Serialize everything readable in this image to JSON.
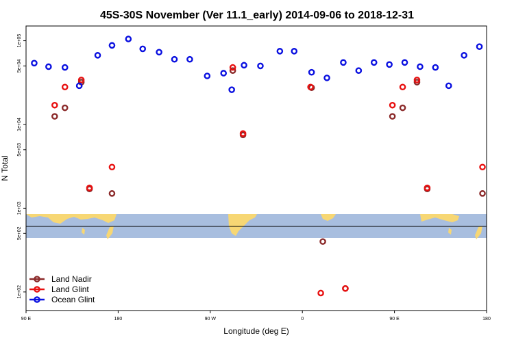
{
  "chart_data": {
    "type": "scatter",
    "title": "45S-30S November (Ver 11.1_early)   2014-09-06 to 2018-12-31",
    "xlabel": "Longitude (deg E)",
    "ylabel": "N Total",
    "x_axis": {
      "range_deg": [
        90,
        450
      ],
      "ticks": [
        {
          "value": 90,
          "label": "90 E"
        },
        {
          "value": 180,
          "label": "180"
        },
        {
          "value": 270,
          "label": "90 W"
        },
        {
          "value": 360,
          "label": "0"
        },
        {
          "value": 450,
          "label": "90 E"
        },
        {
          "value": 540,
          "label": "180"
        }
      ],
      "plot_range_deg": [
        90,
        540
      ]
    },
    "y_axis": {
      "scale": "log",
      "range": [
        60,
        150000
      ],
      "ticks": [
        {
          "value": 100,
          "label": "1e+02"
        },
        {
          "value": 500,
          "label": "5e+02"
        },
        {
          "value": 1000,
          "label": "1e+03"
        },
        {
          "value": 5000,
          "label": "5e+03"
        },
        {
          "value": 10000,
          "label": "1e+04"
        },
        {
          "value": 50000,
          "label": "5e+04"
        },
        {
          "value": 100000,
          "label": "1e+05"
        }
      ]
    },
    "grid": false,
    "legend_position": "bottom-left",
    "map_strip_colors": {
      "ocean": "#a8bedf",
      "land": "#f7d774",
      "line": "#000000"
    },
    "series": [
      {
        "name": "Land Nadir",
        "color": "#8b2a2a",
        "points": [
          {
            "x": 118,
            "y": 12500
          },
          {
            "x": 128,
            "y": 15800
          },
          {
            "x": 144,
            "y": 32000
          },
          {
            "x": 152,
            "y": 1700
          },
          {
            "x": 174,
            "y": 1500
          },
          {
            "x": 292,
            "y": 44000
          },
          {
            "x": 302,
            "y": 7500
          },
          {
            "x": 369,
            "y": 27500
          },
          {
            "x": 380,
            "y": 400
          },
          {
            "x": 402,
            "y": 110
          },
          {
            "x": 448,
            "y": 12500
          },
          {
            "x": 458,
            "y": 15800
          },
          {
            "x": 472,
            "y": 32000
          },
          {
            "x": 482,
            "y": 1700
          },
          {
            "x": 536,
            "y": 1500
          }
        ]
      },
      {
        "name": "Land Glint",
        "color": "#e81010",
        "points": [
          {
            "x": 118,
            "y": 17000
          },
          {
            "x": 128,
            "y": 28000
          },
          {
            "x": 144,
            "y": 34000
          },
          {
            "x": 152,
            "y": 1750
          },
          {
            "x": 174,
            "y": 3100
          },
          {
            "x": 292,
            "y": 48000
          },
          {
            "x": 302,
            "y": 7800
          },
          {
            "x": 368,
            "y": 28000
          },
          {
            "x": 378,
            "y": 97
          },
          {
            "x": 402,
            "y": 110
          },
          {
            "x": 448,
            "y": 17000
          },
          {
            "x": 458,
            "y": 28000
          },
          {
            "x": 472,
            "y": 34000
          },
          {
            "x": 482,
            "y": 1750
          },
          {
            "x": 536,
            "y": 3100
          }
        ]
      },
      {
        "name": "Ocean Glint",
        "color": "#0a10e0",
        "points": [
          {
            "x": 98,
            "y": 54000
          },
          {
            "x": 112,
            "y": 49000
          },
          {
            "x": 128,
            "y": 48000
          },
          {
            "x": 142,
            "y": 29000
          },
          {
            "x": 160,
            "y": 67000
          },
          {
            "x": 174,
            "y": 88000
          },
          {
            "x": 190,
            "y": 105000
          },
          {
            "x": 204,
            "y": 80000
          },
          {
            "x": 220,
            "y": 73000
          },
          {
            "x": 235,
            "y": 60000
          },
          {
            "x": 250,
            "y": 60000
          },
          {
            "x": 267,
            "y": 38000
          },
          {
            "x": 283,
            "y": 41000
          },
          {
            "x": 291,
            "y": 26000
          },
          {
            "x": 303,
            "y": 51000
          },
          {
            "x": 319,
            "y": 50000
          },
          {
            "x": 338,
            "y": 75000
          },
          {
            "x": 352,
            "y": 75000
          },
          {
            "x": 369,
            "y": 42000
          },
          {
            "x": 384,
            "y": 36000
          },
          {
            "x": 400,
            "y": 55000
          },
          {
            "x": 415,
            "y": 44000
          },
          {
            "x": 430,
            "y": 55000
          },
          {
            "x": 445,
            "y": 52000
          },
          {
            "x": 460,
            "y": 55000
          },
          {
            "x": 475,
            "y": 49000
          },
          {
            "x": 490,
            "y": 48000
          },
          {
            "x": 503,
            "y": 29000
          },
          {
            "x": 518,
            "y": 67000
          },
          {
            "x": 533,
            "y": 85000
          }
        ]
      }
    ]
  }
}
